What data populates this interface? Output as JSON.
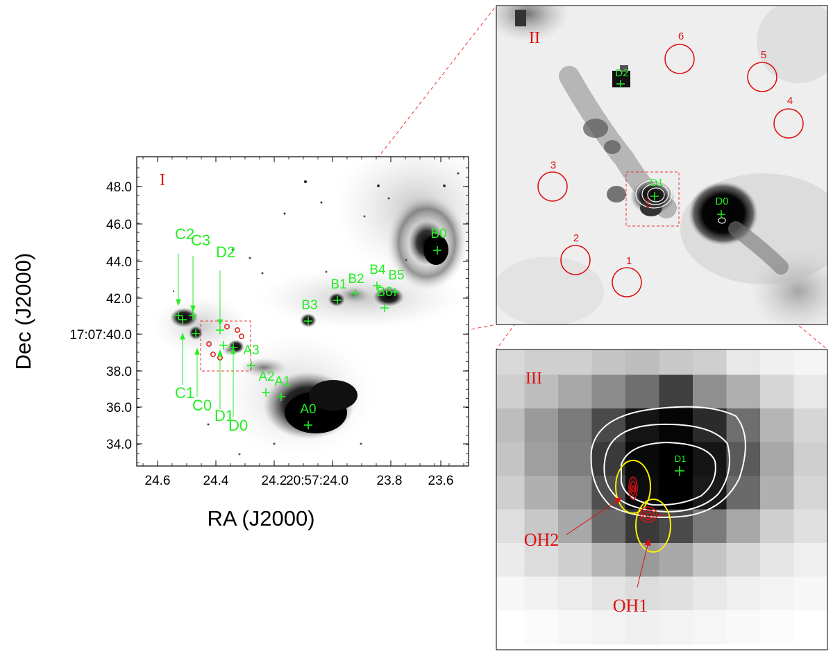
{
  "axes": {
    "ylabel": "Dec (J2000)",
    "xlabel": "RA (J2000)",
    "yticks": [
      "48.0",
      "46.0",
      "44.0",
      "42.0",
      "17:07:40.0",
      "38.0",
      "36.0",
      "34.0"
    ],
    "xticks": [
      "24.6",
      "24.4",
      "24.2",
      "20:57:24.0",
      "23.8",
      "23.6"
    ]
  },
  "panels": {
    "p1": "I",
    "p2": "II",
    "p3": "III"
  },
  "sources_panel1": {
    "A0": "A0",
    "A1": "A1",
    "A2": "A2",
    "A3": "A3",
    "B0": "B0",
    "B1": "B1",
    "B2": "B2",
    "B3": "B3",
    "B4": "B4",
    "B5": "B5",
    "B6": "B6",
    "C0": "C0",
    "C1": "C1",
    "C2": "C2",
    "C3": "C3",
    "D0": "D0",
    "D1": "D1",
    "D2": "D2"
  },
  "sources_panel2": {
    "D0": "D0",
    "D1": "D1",
    "D2": "D2"
  },
  "regions": [
    "1",
    "2",
    "3",
    "4",
    "5",
    "6"
  ],
  "panel3": {
    "D1": "D1",
    "OH1": "OH1",
    "OH2": "OH2"
  },
  "colors": {
    "markers": "#22ee22",
    "regions": "#dd1111",
    "contours": "#ffffff",
    "maser_beam": "#ffee00"
  }
}
